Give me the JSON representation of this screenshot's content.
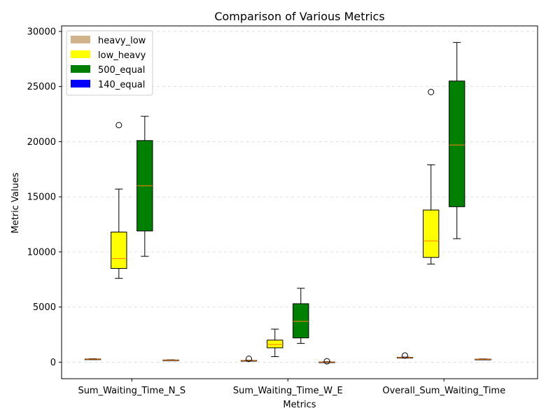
{
  "chart_data": {
    "type": "box",
    "title": "Comparison of Various Metrics",
    "xlabel": "Metrics",
    "ylabel": "Metric Values",
    "ylim": [
      -1500,
      30500
    ],
    "yticks": [
      0,
      5000,
      10000,
      15000,
      20000,
      25000,
      30000
    ],
    "ytick_labels": [
      "0",
      "5000",
      "10000",
      "15000",
      "20000",
      "25000",
      "30000"
    ],
    "grid": "y-dashed",
    "legend_position": "top-left",
    "categories": [
      "Sum_Waiting_Time_N_S",
      "Sum_Waiting_Time_W_E",
      "Overall_Sum_Waiting_Time"
    ],
    "series": [
      {
        "name": "heavy_low",
        "color": "#d2b48c",
        "boxes": [
          {
            "whislo": 240,
            "q1": 255,
            "med": 270,
            "q3": 290,
            "whishi": 310,
            "fliers": []
          },
          {
            "whislo": 110,
            "q1": 125,
            "med": 140,
            "q3": 155,
            "whishi": 170,
            "fliers": [
              300
            ]
          },
          {
            "whislo": 380,
            "q1": 400,
            "med": 420,
            "q3": 440,
            "whishi": 460,
            "fliers": [
              600
            ]
          }
        ]
      },
      {
        "name": "low_heavy",
        "color": "#ffff00",
        "boxes": [
          {
            "whislo": 7600,
            "q1": 8500,
            "med": 9400,
            "q3": 11800,
            "whishi": 15700,
            "fliers": [
              21500
            ]
          },
          {
            "whislo": 500,
            "q1": 1300,
            "med": 1600,
            "q3": 2000,
            "whishi": 3000,
            "fliers": []
          },
          {
            "whislo": 8900,
            "q1": 9500,
            "med": 11000,
            "q3": 13800,
            "whishi": 17900,
            "fliers": [
              24500
            ]
          }
        ]
      },
      {
        "name": "500_equal",
        "color": "#008000",
        "boxes": [
          {
            "whislo": 9600,
            "q1": 11900,
            "med": 16000,
            "q3": 20100,
            "whishi": 22300,
            "fliers": []
          },
          {
            "whislo": 1700,
            "q1": 2200,
            "med": 3700,
            "q3": 5300,
            "whishi": 6700,
            "fliers": []
          },
          {
            "whislo": 11200,
            "q1": 14100,
            "med": 19700,
            "q3": 25500,
            "whishi": 29000,
            "fliers": []
          }
        ]
      },
      {
        "name": "140_equal",
        "color": "#0000ff",
        "boxes": [
          {
            "whislo": 150,
            "q1": 165,
            "med": 180,
            "q3": 200,
            "whishi": 215,
            "fliers": []
          },
          {
            "whislo": -20,
            "q1": -5,
            "med": 5,
            "q3": 20,
            "whishi": 40,
            "fliers": [
              80
            ]
          },
          {
            "whislo": 230,
            "q1": 245,
            "med": 260,
            "q3": 275,
            "whishi": 295,
            "fliers": []
          }
        ]
      }
    ]
  }
}
